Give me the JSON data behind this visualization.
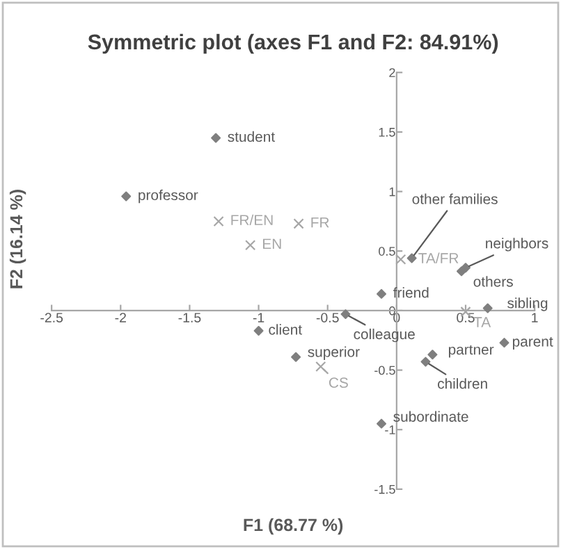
{
  "chart_data": {
    "type": "scatter",
    "title": "Symmetric plot (axes F1 and F2: 84.91%)",
    "xlabel": "F1 (68.77 %)",
    "ylabel": "F2 (16.14 %)",
    "xlim": [
      -2.5,
      1
    ],
    "ylim": [
      -1.5,
      2
    ],
    "xticks": [
      -2.5,
      -2,
      -1.5,
      -1,
      -0.5,
      0,
      0.5,
      1
    ],
    "yticks": [
      -1.5,
      -1,
      -0.5,
      0,
      0.5,
      1,
      1.5,
      2
    ],
    "grid": false,
    "series": [
      {
        "color": "#7f7f7f",
        "marker": "diamond",
        "x": [
          -1.31,
          -1.96,
          -1.0,
          -0.37,
          -0.11,
          0.11,
          0.5,
          0.47,
          0.66,
          0.78,
          0.26,
          0.21,
          -0.11,
          -0.73
        ],
        "values": [
          1.45,
          0.96,
          -0.17,
          -0.03,
          0.14,
          0.44,
          0.36,
          0.33,
          0.02,
          -0.27,
          -0.37,
          -0.43,
          -0.95,
          -0.39
        ]
      },
      {
        "color": "#a6a6a6",
        "marker": "cross",
        "x": [
          -1.29,
          -1.06,
          -0.71,
          0.03,
          0.5,
          -0.55
        ],
        "values": [
          0.75,
          0.55,
          0.73,
          0.43,
          -0.01,
          -0.47
        ]
      }
    ],
    "annotations": [
      {
        "text": "student",
        "x": -1.31,
        "y": 1.45
      },
      {
        "text": "professor",
        "x": -1.96,
        "y": 0.96
      },
      {
        "text": "client",
        "x": -1.0,
        "y": -0.17
      },
      {
        "text": "colleague",
        "x": -0.37,
        "y": -0.03
      },
      {
        "text": "friend",
        "x": -0.11,
        "y": 0.14
      },
      {
        "text": "other families",
        "x": 0.11,
        "y": 0.44
      },
      {
        "text": "neighbors",
        "x": 0.5,
        "y": 0.36
      },
      {
        "text": "others",
        "x": 0.47,
        "y": 0.33
      },
      {
        "text": "sibling",
        "x": 0.66,
        "y": 0.02
      },
      {
        "text": "parent",
        "x": 0.78,
        "y": -0.27
      },
      {
        "text": "partner",
        "x": 0.26,
        "y": -0.37
      },
      {
        "text": "children",
        "x": 0.21,
        "y": -0.43
      },
      {
        "text": "subordinate",
        "x": -0.11,
        "y": -0.95
      },
      {
        "text": "superior",
        "x": -0.73,
        "y": -0.39
      },
      {
        "text": "FR/EN",
        "x": -1.29,
        "y": 0.75
      },
      {
        "text": "EN",
        "x": -1.06,
        "y": 0.55
      },
      {
        "text": "FR",
        "x": -0.71,
        "y": 0.73
      },
      {
        "text": "TA/FR",
        "x": 0.03,
        "y": 0.43
      },
      {
        "text": "TA",
        "x": 0.5,
        "y": -0.01
      },
      {
        "text": "CS",
        "x": -0.55,
        "y": -0.47
      }
    ]
  }
}
